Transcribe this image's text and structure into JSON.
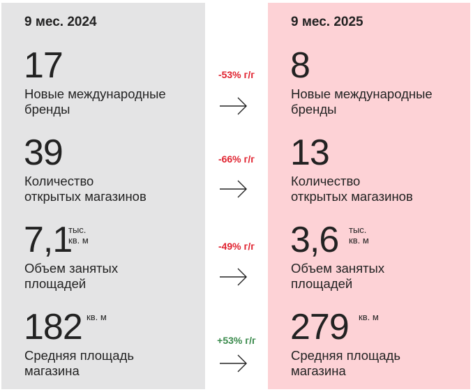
{
  "left_panel": {
    "period": "9 мес. 2024",
    "metrics": [
      {
        "value": "17",
        "unit_line1": "",
        "unit_line2": "",
        "label_line1": "Новые международные",
        "label_line2": "бренды"
      },
      {
        "value": "39",
        "unit_line1": "",
        "unit_line2": "",
        "label_line1": "Количество",
        "label_line2": "открытых магазинов"
      },
      {
        "value": "7,1",
        "unit_line1": "тыс.",
        "unit_line2": "кв. м",
        "label_line1": "Объем занятых",
        "label_line2": "площадей"
      },
      {
        "value": "182",
        "unit_line1": "кв. м",
        "unit_line2": "",
        "label_line1": "Средняя площадь",
        "label_line2": "магазина"
      }
    ]
  },
  "right_panel": {
    "period": "9 мес. 2025",
    "metrics": [
      {
        "value": "8",
        "unit_line1": "",
        "unit_line2": "",
        "label_line1": "Новые международные",
        "label_line2": "бренды"
      },
      {
        "value": "13",
        "unit_line1": "",
        "unit_line2": "",
        "label_line1": "Количество",
        "label_line2": "открытых магазинов"
      },
      {
        "value": "3,6",
        "unit_line1": "тыс.",
        "unit_line2": "кв. м",
        "label_line1": "Объем занятых",
        "label_line2": "площадей"
      },
      {
        "value": "279",
        "unit_line1": "кв. м",
        "unit_line2": "",
        "label_line1": "Средняя площадь",
        "label_line2": "магазина"
      }
    ]
  },
  "changes": [
    {
      "text": "-53% г/г",
      "direction": "negative"
    },
    {
      "text": "-66% г/г",
      "direction": "negative"
    },
    {
      "text": "-49% г/г",
      "direction": "negative"
    },
    {
      "text": "+53% г/г",
      "direction": "positive"
    }
  ],
  "colors": {
    "left_panel_bg": "#e4e4e5",
    "right_panel_bg": "#fdd2d6",
    "negative": "#e0222f",
    "positive": "#3a8a4c",
    "text": "#222222"
  },
  "icons": {
    "arrow": "arrow-right-icon"
  }
}
